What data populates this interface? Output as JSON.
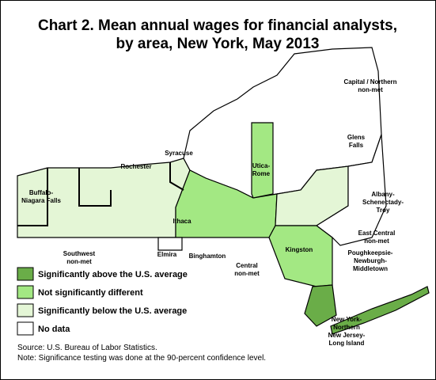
{
  "header": {
    "title": [
      "Chart 2. Mean annual wages for financial analysts,",
      "by area, New York, May 2013"
    ]
  },
  "areas": [
    {
      "lines": [
        "Capital / Northern",
        "non-met"
      ]
    },
    {
      "lines": [
        "Glens",
        "Falls"
      ]
    },
    {
      "lines": [
        "Syracuse"
      ]
    },
    {
      "lines": [
        "Rochester"
      ]
    },
    {
      "lines": [
        "Buffalo-",
        "Niagara Falls"
      ]
    },
    {
      "lines": [
        "Utica-",
        "Rome"
      ]
    },
    {
      "lines": [
        "Albany-",
        "Schenectady-",
        "Troy"
      ]
    },
    {
      "lines": [
        "East Central",
        "non-met"
      ]
    },
    {
      "lines": [
        "Ithaca"
      ]
    },
    {
      "lines": [
        "Elmira"
      ]
    },
    {
      "lines": [
        "Binghamton"
      ]
    },
    {
      "lines": [
        "Southwest",
        "non-met"
      ]
    },
    {
      "lines": [
        "Kingston"
      ]
    },
    {
      "lines": [
        "Central",
        "non-met"
      ]
    },
    {
      "lines": [
        "Poughkeepsie-",
        "Newburgh-",
        "Middletown"
      ]
    },
    {
      "lines": [
        "New York-",
        "Northern",
        "New Jersey-",
        "Long Island"
      ]
    }
  ],
  "legend": [
    {
      "label": "Significantly above the U.S. average",
      "color": "#6aad48"
    },
    {
      "label": "Not significantly different",
      "color": "#a3e883"
    },
    {
      "label": "Significantly below the U.S. average",
      "color": "#e4f6d6"
    },
    {
      "label": "No data",
      "color": "#ffffff"
    }
  ],
  "footer": {
    "source": "Source: U.S. Bureau of Labor Statistics.",
    "note": "Note: Significance testing was done at the 90-percent confidence level."
  }
}
